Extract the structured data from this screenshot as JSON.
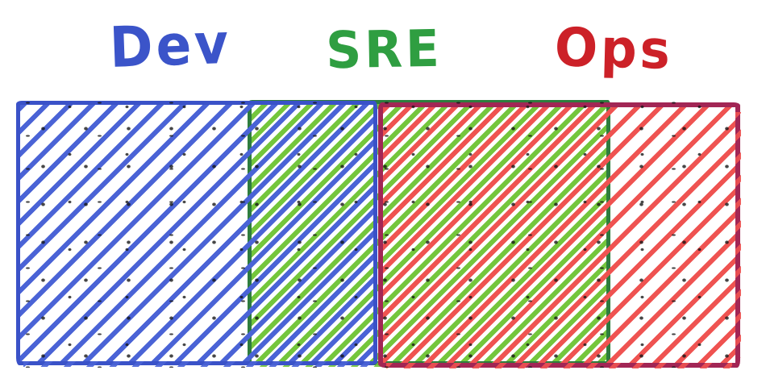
{
  "diagram": {
    "type": "overlapping-rectangles",
    "labels": {
      "dev": "Dev",
      "sre": "SRE",
      "ops": "Ops"
    },
    "regions": [
      {
        "label": "Dev",
        "text_color": "#3b54c9",
        "hatch_color": "#4a63d6",
        "border_color": "#3a52c8",
        "overlaps_with": [
          "SRE"
        ]
      },
      {
        "label": "SRE",
        "text_color": "#2f9e41",
        "hatch_color": "#74c63c",
        "border_color": "#2e7d3e",
        "overlaps_with": [
          "Dev",
          "Ops"
        ]
      },
      {
        "label": "Ops",
        "text_color": "#cc2128",
        "hatch_color": "#ef5351",
        "border_color": "#a22655",
        "overlaps_with": [
          "SRE"
        ]
      }
    ]
  },
  "colors": {
    "dev_text": "#3b54c9",
    "dev_hatch": "#4a63d6",
    "dev_border": "#3a52c8",
    "sre_text": "#2f9e41",
    "sre_hatch": "#74c63c",
    "sre_border": "#2e7d3e",
    "ops_text": "#cc2128",
    "ops_hatch": "#ef5351",
    "ops_border": "#a22655",
    "background": "#ffffff",
    "speckle": "#141414"
  }
}
